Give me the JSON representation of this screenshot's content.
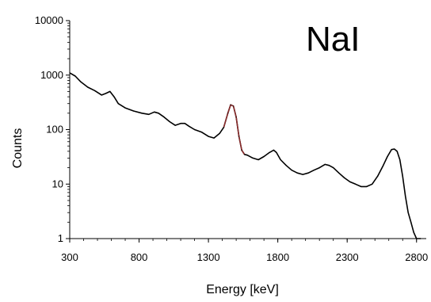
{
  "chart_data": {
    "type": "line",
    "title": "NaI",
    "xlabel": "Energy [keV]",
    "ylabel": "Counts",
    "xlim": [
      300,
      2870
    ],
    "ylim": [
      1,
      10000
    ],
    "yscale": "log",
    "grid": false,
    "x_ticks": [
      300,
      800,
      1300,
      1800,
      2300,
      2800
    ],
    "x_tick_labels": [
      "300",
      "800",
      "1300",
      "1800",
      "2300",
      "2800"
    ],
    "y_ticks": [
      1,
      10,
      100,
      1000,
      10000
    ],
    "y_tick_labels": [
      "1",
      "10",
      "100",
      "1000",
      "10000"
    ],
    "line_color": "#000000",
    "highlight_color": "#8b2d2d",
    "highlight_range": [
      1410,
      1560
    ],
    "series": [
      {
        "x": [
          300,
          340,
          380,
          430,
          480,
          530,
          560,
          590,
          620,
          650,
          700,
          760,
          820,
          870,
          910,
          940,
          980,
          1020,
          1060,
          1100,
          1130,
          1160,
          1200,
          1250,
          1300,
          1340,
          1380,
          1410,
          1440,
          1460,
          1480,
          1500,
          1520,
          1540,
          1560,
          1580,
          1620,
          1660,
          1700,
          1740,
          1770,
          1790,
          1820,
          1860,
          1900,
          1940,
          1980,
          2020,
          2060,
          2100,
          2140,
          2170,
          2200,
          2240,
          2280,
          2320,
          2360,
          2400,
          2440,
          2480,
          2520,
          2560,
          2590,
          2620,
          2640,
          2660,
          2680,
          2700,
          2720,
          2740,
          2760,
          2780,
          2800,
          2830
        ],
        "y": [
          1100,
          960,
          750,
          600,
          520,
          430,
          460,
          500,
          400,
          300,
          250,
          220,
          200,
          190,
          210,
          200,
          170,
          140,
          120,
          130,
          130,
          115,
          100,
          90,
          75,
          70,
          85,
          110,
          200,
          285,
          270,
          170,
          75,
          42,
          35,
          34,
          30,
          28,
          32,
          38,
          42,
          38,
          28,
          22,
          18,
          16,
          15,
          16,
          18,
          20,
          23,
          22,
          20,
          16,
          13,
          11,
          10,
          9,
          9,
          10,
          14,
          22,
          32,
          43,
          44,
          40,
          28,
          14,
          6,
          3,
          2,
          1.3,
          1,
          1
        ]
      }
    ]
  }
}
